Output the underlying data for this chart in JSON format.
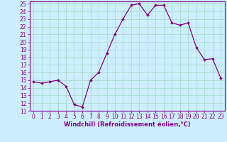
{
  "x": [
    0,
    1,
    2,
    3,
    4,
    5,
    6,
    7,
    8,
    9,
    10,
    11,
    12,
    13,
    14,
    15,
    16,
    17,
    18,
    19,
    20,
    21,
    22,
    23
  ],
  "y": [
    14.8,
    14.6,
    14.8,
    15.0,
    14.2,
    11.8,
    11.5,
    15.0,
    16.0,
    18.5,
    21.0,
    23.0,
    24.8,
    25.0,
    23.5,
    24.8,
    24.8,
    22.5,
    22.2,
    22.5,
    19.3,
    17.7,
    17.8,
    15.3
  ],
  "line_color": "#880088",
  "marker": "D",
  "markersize": 1.8,
  "linewidth": 0.9,
  "bg_color": "#cceeff",
  "grid_color": "#aaddcc",
  "xlabel": "Windchill (Refroidissement éolien,°C)",
  "xlabel_color": "#880088",
  "xlabel_fontsize": 6.0,
  "tick_color": "#880088",
  "tick_fontsize": 5.5,
  "ytick_min": 11,
  "ytick_max": 25,
  "xtick_min": 0,
  "xtick_max": 23
}
